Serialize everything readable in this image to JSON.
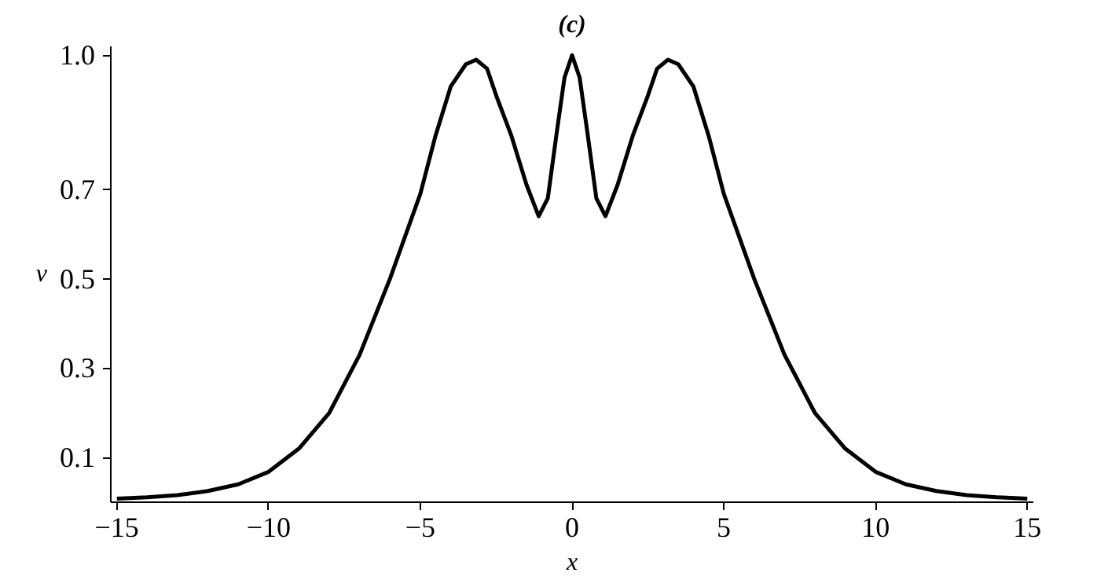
{
  "chart_data": {
    "type": "line",
    "title": "(c)",
    "xlabel": "x",
    "ylabel": "v",
    "x": [
      -15,
      -14,
      -13,
      -12,
      -11,
      -10,
      -9,
      -8,
      -7,
      -6,
      -5,
      -4.5,
      -4,
      -3.5,
      -3.16,
      -2.8,
      -2.5,
      -2,
      -1.5,
      -1.1,
      -0.8,
      -0.5,
      -0.25,
      0,
      0.25,
      0.5,
      0.8,
      1.1,
      1.5,
      2,
      2.5,
      2.8,
      3.16,
      3.5,
      4,
      4.5,
      5,
      6,
      7,
      8,
      9,
      10,
      11,
      12,
      13,
      14,
      15
    ],
    "series": [
      {
        "color": "#000000",
        "values": [
          0.008,
          0.011,
          0.016,
          0.025,
          0.04,
          0.068,
          0.12,
          0.2,
          0.33,
          0.5,
          0.69,
          0.82,
          0.93,
          0.98,
          0.99,
          0.97,
          0.91,
          0.82,
          0.71,
          0.64,
          0.68,
          0.83,
          0.95,
          1.0,
          0.95,
          0.83,
          0.68,
          0.64,
          0.71,
          0.82,
          0.91,
          0.97,
          0.99,
          0.98,
          0.93,
          0.82,
          0.69,
          0.5,
          0.33,
          0.2,
          0.12,
          0.068,
          0.04,
          0.025,
          0.016,
          0.011,
          0.008
        ]
      }
    ],
    "xlim": [
      -15.2,
      15.2
    ],
    "ylim": [
      0,
      1.02
    ],
    "xticks": [
      -15,
      -10,
      -5,
      0,
      5,
      10,
      15
    ],
    "yticks": [
      0.1,
      0.3,
      0.5,
      0.7,
      {
        "value": 1,
        "label": "1.0"
      }
    ],
    "grid": false,
    "marker": "none",
    "line_style": "solid"
  }
}
